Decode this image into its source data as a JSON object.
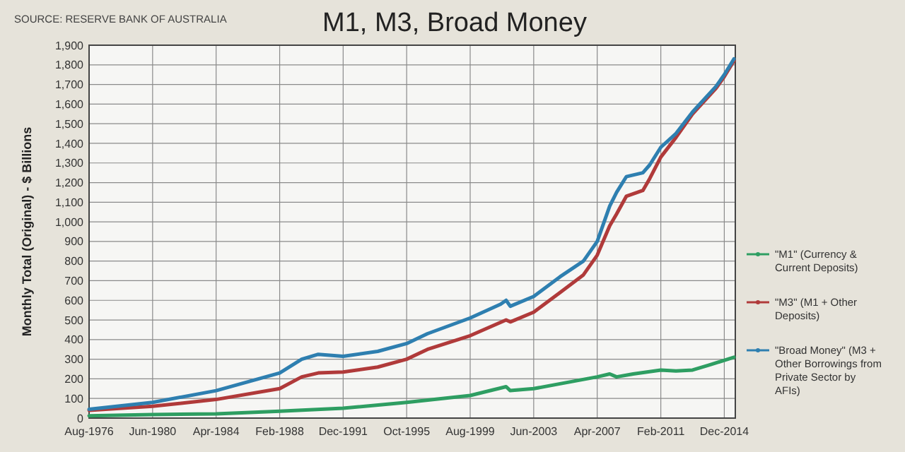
{
  "chart_data": {
    "type": "line",
    "title": "M1, M3, Broad Money",
    "ylabel": "Monthly Total (Original) - $ Billions",
    "annotations": [
      "SOURCE: RESERVE BANK OF AUSTRALIA"
    ],
    "xlim": [
      "1976-08",
      "2015-08"
    ],
    "xticks": [
      {
        "value": "1976-08",
        "label": "Aug-1976"
      },
      {
        "value": "1980-06",
        "label": "Jun-1980"
      },
      {
        "value": "1984-04",
        "label": "Apr-1984"
      },
      {
        "value": "1988-02",
        "label": "Feb-1988"
      },
      {
        "value": "1991-12",
        "label": "Dec-1991"
      },
      {
        "value": "1995-10",
        "label": "Oct-1995"
      },
      {
        "value": "1999-08",
        "label": "Aug-1999"
      },
      {
        "value": "2003-06",
        "label": "Jun-2003"
      },
      {
        "value": "2007-04",
        "label": "Apr-2007"
      },
      {
        "value": "2011-02",
        "label": "Feb-2011"
      },
      {
        "value": "2014-12",
        "label": "Dec-2014"
      }
    ],
    "ylim": [
      0,
      1900
    ],
    "yticks": [
      0,
      100,
      200,
      300,
      400,
      500,
      600,
      700,
      800,
      900,
      {
        "value": 1000,
        "label": "1,000"
      },
      {
        "value": 1100,
        "label": "1,100"
      },
      {
        "value": 1200,
        "label": "1,200"
      },
      {
        "value": 1300,
        "label": "1,300"
      },
      {
        "value": 1400,
        "label": "1,400"
      },
      {
        "value": 1500,
        "label": "1,500"
      },
      {
        "value": 1600,
        "label": "1,600"
      },
      {
        "value": 1700,
        "label": "1,700"
      },
      {
        "value": 1800,
        "label": "1,800"
      },
      {
        "value": 1900,
        "label": "1,900"
      }
    ],
    "grid": true,
    "legend": "right",
    "series": [
      {
        "name": "\"M1\" (Currency & Current Deposits)",
        "color": "#2e9e62",
        "x": [
          "1976-08",
          "1980-06",
          "1984-04",
          "1988-02",
          "1991-12",
          "1995-10",
          "1999-08",
          "2001-10",
          "2002-01",
          "2003-06",
          "2005-01",
          "2007-04",
          "2008-01",
          "2008-06",
          "2009-06",
          "2011-02",
          "2012-01",
          "2013-01",
          "2014-01",
          "2015-07"
        ],
        "values": [
          12,
          18,
          22,
          35,
          50,
          80,
          115,
          160,
          140,
          150,
          175,
          210,
          225,
          210,
          225,
          245,
          240,
          245,
          270,
          310
        ]
      },
      {
        "name": "\"M3\" (M1 + Other Deposits)",
        "color": "#b03a3a",
        "x": [
          "1976-08",
          "1980-06",
          "1984-04",
          "1988-02",
          "1989-06",
          "1990-06",
          "1991-12",
          "1994-01",
          "1995-10",
          "1997-01",
          "1999-08",
          "2001-10",
          "2002-01",
          "2003-06",
          "2005-01",
          "2006-06",
          "2007-04",
          "2008-01",
          "2008-06",
          "2009-01",
          "2010-01",
          "2010-06",
          "2011-02",
          "2012-01",
          "2013-01",
          "2014-06",
          "2014-12",
          "2015-07"
        ],
        "values": [
          40,
          60,
          95,
          150,
          210,
          230,
          235,
          260,
          300,
          350,
          420,
          500,
          490,
          540,
          640,
          730,
          830,
          980,
          1040,
          1130,
          1160,
          1220,
          1330,
          1430,
          1550,
          1680,
          1740,
          1820
        ]
      },
      {
        "name": "\"Broad Money\" (M3 + Other Borrowings from Private Sector by AFIs)",
        "color": "#2e7fb0",
        "x": [
          "1976-08",
          "1980-06",
          "1984-04",
          "1988-02",
          "1989-06",
          "1990-06",
          "1991-12",
          "1994-01",
          "1995-10",
          "1997-01",
          "1999-08",
          "2001-06",
          "2001-10",
          "2002-01",
          "2003-06",
          "2005-01",
          "2006-06",
          "2007-04",
          "2008-01",
          "2008-06",
          "2009-01",
          "2010-01",
          "2010-06",
          "2011-02",
          "2012-01",
          "2013-01",
          "2014-06",
          "2014-12",
          "2015-07"
        ],
        "values": [
          45,
          80,
          140,
          230,
          300,
          325,
          315,
          340,
          380,
          430,
          510,
          580,
          600,
          570,
          620,
          720,
          800,
          900,
          1080,
          1150,
          1230,
          1250,
          1290,
          1380,
          1450,
          1560,
          1690,
          1750,
          1830
        ]
      }
    ]
  }
}
